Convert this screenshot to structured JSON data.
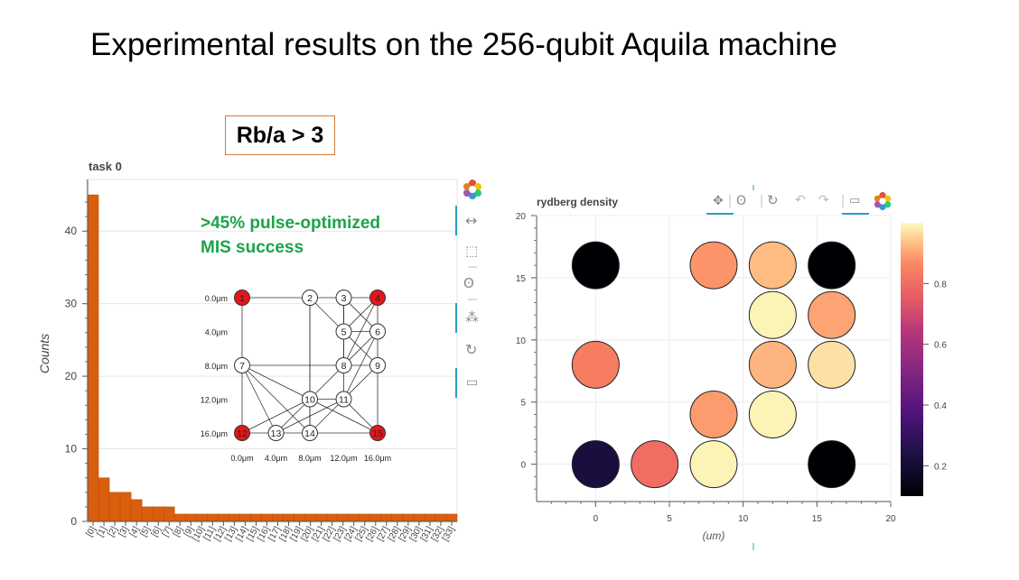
{
  "slide": {
    "title": "Experimental results on the 256-qubit Aquila machine",
    "rb_label": "Rb/a > 3"
  },
  "colors": {
    "bar": "#d95f0e",
    "annotation": "#1aa44a",
    "highlight_node": "#e8141a",
    "toolbar_active": "#2c9ec4"
  },
  "left_toolbar_icons": [
    "bokeh-logo-icon",
    "pan-arrows-icon",
    "box-zoom-icon",
    "wheel-zoom-icon",
    "tap-select-icon",
    "reset-icon",
    "hover-icon"
  ],
  "right_toolbar_icons": [
    "pan-icon",
    "wheel-zoom-icon",
    "reset-icon",
    "undo-icon",
    "redo-icon",
    "hover-icon",
    "bokeh-logo-icon"
  ],
  "chart_data": [
    {
      "type": "bar",
      "title": "task 0",
      "ylabel": "Counts",
      "xlabel": "",
      "ylim": [
        0,
        45
      ],
      "yticks": [
        0,
        10,
        20,
        30,
        40
      ],
      "categories": [
        "[0]",
        "[1]",
        "[2]",
        "[3]",
        "[4]",
        "[5]",
        "[6]",
        "[7]",
        "[8]",
        "[9]",
        "[10]",
        "[11]",
        "[12]",
        "[13]",
        "[14]",
        "[15]",
        "[16]",
        "[17]",
        "[18]",
        "[19]",
        "[20]",
        "[21]",
        "[22]",
        "[23]",
        "[24]",
        "[25]",
        "[26]",
        "[27]",
        "[28]",
        "[29]",
        "[30]",
        "[31]",
        "[32]",
        "[33]"
      ],
      "values": [
        45,
        6,
        4,
        4,
        3,
        2,
        2,
        2,
        1,
        1,
        1,
        1,
        1,
        1,
        1,
        1,
        1,
        1,
        1,
        1,
        1,
        1,
        1,
        1,
        1,
        1,
        1,
        1,
        1,
        1,
        1,
        1,
        1,
        1
      ],
      "annotation": [
        ">45% pulse-optimized",
        "MIS success"
      ],
      "grid": true
    },
    {
      "type": "scatter",
      "title": "rydberg density",
      "xlabel": "(um)",
      "ylabel": "",
      "xlim": [
        -4,
        20
      ],
      "ylim": [
        -3,
        20
      ],
      "xticks": [
        0,
        5,
        10,
        15,
        20
      ],
      "yticks": [
        0,
        5,
        10,
        15,
        20
      ],
      "colorbar_ticks": [
        0.2,
        0.4,
        0.6,
        0.8
      ],
      "colorbar_range": [
        0.1,
        1.0
      ],
      "points": [
        {
          "x": 0,
          "y": 16,
          "value": 0.05
        },
        {
          "x": 8,
          "y": 16,
          "value": 0.88
        },
        {
          "x": 12,
          "y": 16,
          "value": 0.93
        },
        {
          "x": 16,
          "y": 16,
          "value": 0.1
        },
        {
          "x": 12,
          "y": 12,
          "value": 0.99
        },
        {
          "x": 16,
          "y": 12,
          "value": 0.9
        },
        {
          "x": 0,
          "y": 8,
          "value": 0.84
        },
        {
          "x": 12,
          "y": 8,
          "value": 0.92
        },
        {
          "x": 16,
          "y": 8,
          "value": 0.97
        },
        {
          "x": 8,
          "y": 4,
          "value": 0.89
        },
        {
          "x": 12,
          "y": 4,
          "value": 0.99
        },
        {
          "x": 0,
          "y": 0,
          "value": 0.22
        },
        {
          "x": 4,
          "y": 0,
          "value": 0.8
        },
        {
          "x": 8,
          "y": 0,
          "value": 0.99
        },
        {
          "x": 16,
          "y": 0,
          "value": 0.02
        }
      ],
      "grid": true
    },
    {
      "type": "graph",
      "row_labels": [
        "0.0μm",
        "4.0μm",
        "8.0μm",
        "12.0μm",
        "16.0μm"
      ],
      "col_labels": [
        "0.0μm",
        "4.0μm",
        "8.0μm",
        "12.0μm",
        "16.0μm"
      ],
      "nodes": [
        {
          "id": "1",
          "x": 0,
          "y": 0,
          "highlight": true
        },
        {
          "id": "2",
          "x": 8,
          "y": 0,
          "highlight": false
        },
        {
          "id": "3",
          "x": 12,
          "y": 0,
          "highlight": false
        },
        {
          "id": "4",
          "x": 16,
          "y": 0,
          "highlight": true
        },
        {
          "id": "5",
          "x": 12,
          "y": 4,
          "highlight": false
        },
        {
          "id": "6",
          "x": 16,
          "y": 4,
          "highlight": false
        },
        {
          "id": "7",
          "x": 0,
          "y": 8,
          "highlight": false
        },
        {
          "id": "8",
          "x": 12,
          "y": 8,
          "highlight": false
        },
        {
          "id": "9",
          "x": 16,
          "y": 8,
          "highlight": false
        },
        {
          "id": "10",
          "x": 8,
          "y": 12,
          "highlight": false
        },
        {
          "id": "11",
          "x": 12,
          "y": 12,
          "highlight": false
        },
        {
          "id": "12",
          "x": 0,
          "y": 16,
          "highlight": true
        },
        {
          "id": "13",
          "x": 4,
          "y": 16,
          "highlight": false
        },
        {
          "id": "14",
          "x": 8,
          "y": 16,
          "highlight": false
        },
        {
          "id": "15",
          "x": 16,
          "y": 16,
          "highlight": true
        }
      ],
      "edges": [
        [
          "1",
          "2"
        ],
        [
          "2",
          "3"
        ],
        [
          "3",
          "4"
        ],
        [
          "1",
          "7"
        ],
        [
          "7",
          "12"
        ],
        [
          "12",
          "13"
        ],
        [
          "13",
          "14"
        ],
        [
          "14",
          "15"
        ],
        [
          "4",
          "6"
        ],
        [
          "6",
          "9"
        ],
        [
          "9",
          "15"
        ],
        [
          "3",
          "5"
        ],
        [
          "5",
          "6"
        ],
        [
          "5",
          "8"
        ],
        [
          "8",
          "9"
        ],
        [
          "8",
          "11"
        ],
        [
          "10",
          "11"
        ],
        [
          "10",
          "14"
        ],
        [
          "11",
          "14"
        ],
        [
          "7",
          "8"
        ],
        [
          "2",
          "5"
        ],
        [
          "2",
          "10"
        ],
        [
          "2",
          "14"
        ],
        [
          "3",
          "6"
        ],
        [
          "4",
          "5"
        ],
        [
          "3",
          "8"
        ],
        [
          "4",
          "8"
        ],
        [
          "5",
          "9"
        ],
        [
          "6",
          "8"
        ],
        [
          "9",
          "11"
        ],
        [
          "11",
          "15"
        ],
        [
          "10",
          "15"
        ],
        [
          "7",
          "10"
        ],
        [
          "7",
          "13"
        ],
        [
          "10",
          "12"
        ],
        [
          "10",
          "13"
        ],
        [
          "11",
          "13"
        ],
        [
          "7",
          "14"
        ],
        [
          "8",
          "10"
        ],
        [
          "6",
          "11"
        ]
      ]
    }
  ]
}
